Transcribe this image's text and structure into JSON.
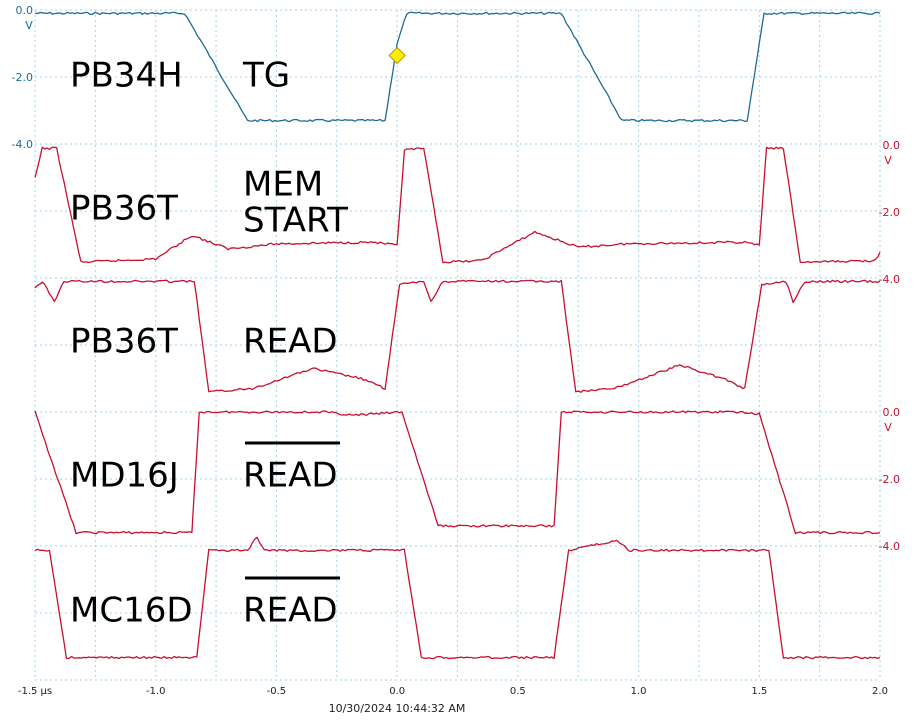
{
  "chart_data": {
    "type": "line",
    "x_unit": "µs",
    "x_range": [
      -1.5,
      2.0
    ],
    "x_ticks": [
      "-1.5 µs",
      "-1.0",
      "-0.5",
      "0.0",
      "0.5",
      "1.0",
      "1.5",
      "2.0"
    ],
    "timestamp": "10/30/2024 10:44:32 AM",
    "trigger_marker": {
      "x": 0.0,
      "y": -1.0,
      "color": "#ffee00"
    },
    "colors": {
      "ch1": "#1f6b98",
      "ch2": "#c8102e",
      "grid": "#9fd6ea"
    },
    "scale_labels": [
      {
        "side": "left",
        "value": "0.0",
        "unit": "V",
        "channel": 1
      },
      {
        "side": "left",
        "value": "-2.0",
        "unit": "",
        "channel": 1
      },
      {
        "side": "left",
        "value": "-4.0",
        "unit": "",
        "channel": 1
      },
      {
        "side": "right",
        "value": "0.0",
        "unit": "V",
        "channel": 2
      },
      {
        "side": "right",
        "value": "-2.0",
        "unit": "",
        "channel": 2
      },
      {
        "side": "right",
        "value": "-4.0",
        "unit": "",
        "channel": 2
      },
      {
        "side": "right",
        "value": "0.0",
        "unit": "V",
        "channel": 4
      },
      {
        "side": "right",
        "value": "-2.0",
        "unit": "",
        "channel": 4
      },
      {
        "side": "right",
        "value": "-4.0",
        "unit": "",
        "channel": 4
      }
    ],
    "series": [
      {
        "name": "TG",
        "net": "PB34H",
        "points": [
          [
            -1.5,
            -0.1
          ],
          [
            -0.88,
            -0.1
          ],
          [
            -0.62,
            -3.3
          ],
          [
            -0.05,
            -3.3
          ],
          [
            0.0,
            -1.0
          ],
          [
            0.04,
            -0.1
          ],
          [
            0.68,
            -0.1
          ],
          [
            0.93,
            -3.3
          ],
          [
            1.45,
            -3.3
          ],
          [
            1.52,
            -0.1
          ],
          [
            2.0,
            -0.1
          ]
        ]
      },
      {
        "name": "MEM START",
        "net": "PB36T",
        "points": [
          [
            -1.5,
            -1.0
          ],
          [
            -1.47,
            -0.1
          ],
          [
            -1.41,
            -0.1
          ],
          [
            -1.31,
            -3.5
          ],
          [
            -1.0,
            -3.4
          ],
          [
            -0.85,
            -2.7
          ],
          [
            -0.7,
            -3.1
          ],
          [
            -0.5,
            -2.95
          ],
          [
            -0.1,
            -2.9
          ],
          [
            0.0,
            -3.0
          ],
          [
            0.03,
            -0.15
          ],
          [
            0.11,
            -0.1
          ],
          [
            0.19,
            -3.5
          ],
          [
            0.35,
            -3.45
          ],
          [
            0.57,
            -2.6
          ],
          [
            0.75,
            -3.05
          ],
          [
            0.95,
            -2.95
          ],
          [
            1.44,
            -2.9
          ],
          [
            1.5,
            -3.0
          ],
          [
            1.53,
            -0.1
          ],
          [
            1.6,
            -0.1
          ],
          [
            1.67,
            -3.5
          ],
          [
            1.98,
            -3.45
          ],
          [
            2.0,
            -3.2
          ]
        ]
      },
      {
        "name": "READ",
        "net": "PB36T",
        "points": [
          [
            -1.5,
            -0.3
          ],
          [
            -1.47,
            -0.1
          ],
          [
            -1.42,
            -0.7
          ],
          [
            -1.38,
            -0.1
          ],
          [
            -0.84,
            -0.1
          ],
          [
            -0.78,
            -3.4
          ],
          [
            -0.6,
            -3.3
          ],
          [
            -0.35,
            -2.7
          ],
          [
            -0.15,
            -3.0
          ],
          [
            -0.05,
            -3.3
          ],
          [
            0.01,
            -0.2
          ],
          [
            0.11,
            -0.1
          ],
          [
            0.14,
            -0.7
          ],
          [
            0.19,
            -0.1
          ],
          [
            0.68,
            -0.1
          ],
          [
            0.74,
            -3.4
          ],
          [
            0.9,
            -3.3
          ],
          [
            1.17,
            -2.6
          ],
          [
            1.35,
            -3.0
          ],
          [
            1.44,
            -3.3
          ],
          [
            1.51,
            -0.2
          ],
          [
            1.61,
            -0.1
          ],
          [
            1.64,
            -0.7
          ],
          [
            1.69,
            -0.1
          ],
          [
            2.0,
            -0.1
          ]
        ]
      },
      {
        "name": "READ̄",
        "net": "MD16J",
        "points": [
          [
            -1.5,
            0.0
          ],
          [
            -1.33,
            -3.6
          ],
          [
            -0.85,
            -3.6
          ],
          [
            -0.82,
            0.0
          ],
          [
            -0.3,
            0.0
          ],
          [
            -0.18,
            -0.1
          ],
          [
            0.02,
            0.0
          ],
          [
            0.17,
            -3.4
          ],
          [
            0.65,
            -3.4
          ],
          [
            0.68,
            0.0
          ],
          [
            1.4,
            0.0
          ],
          [
            1.5,
            -0.05
          ],
          [
            1.65,
            -3.6
          ],
          [
            2.0,
            -3.6
          ]
        ]
      },
      {
        "name": "READ̄",
        "net": "MC16D",
        "points": [
          [
            -1.5,
            -0.1
          ],
          [
            -1.44,
            -0.1
          ],
          [
            -1.37,
            -3.3
          ],
          [
            -0.83,
            -3.3
          ],
          [
            -0.78,
            -0.1
          ],
          [
            -0.62,
            -0.1
          ],
          [
            -0.58,
            0.3
          ],
          [
            -0.55,
            -0.1
          ],
          [
            -0.1,
            -0.1
          ],
          [
            0.03,
            -0.1
          ],
          [
            0.1,
            -3.3
          ],
          [
            0.65,
            -3.3
          ],
          [
            0.71,
            -0.1
          ],
          [
            0.91,
            0.2
          ],
          [
            0.96,
            -0.1
          ],
          [
            1.54,
            -0.1
          ],
          [
            1.6,
            -3.3
          ],
          [
            2.0,
            -3.3
          ]
        ]
      }
    ]
  },
  "labels": [
    {
      "net": "PB34H",
      "signal": "TG",
      "signal_line2": "",
      "overbar": false
    },
    {
      "net": "PB36T",
      "signal": "MEM",
      "signal_line2": "START",
      "overbar": false
    },
    {
      "net": "PB36T",
      "signal": "READ",
      "signal_line2": "",
      "overbar": false
    },
    {
      "net": "MD16J",
      "signal": "READ",
      "signal_line2": "",
      "overbar": true
    },
    {
      "net": "MC16D",
      "signal": "READ",
      "signal_line2": "",
      "overbar": true
    }
  ]
}
